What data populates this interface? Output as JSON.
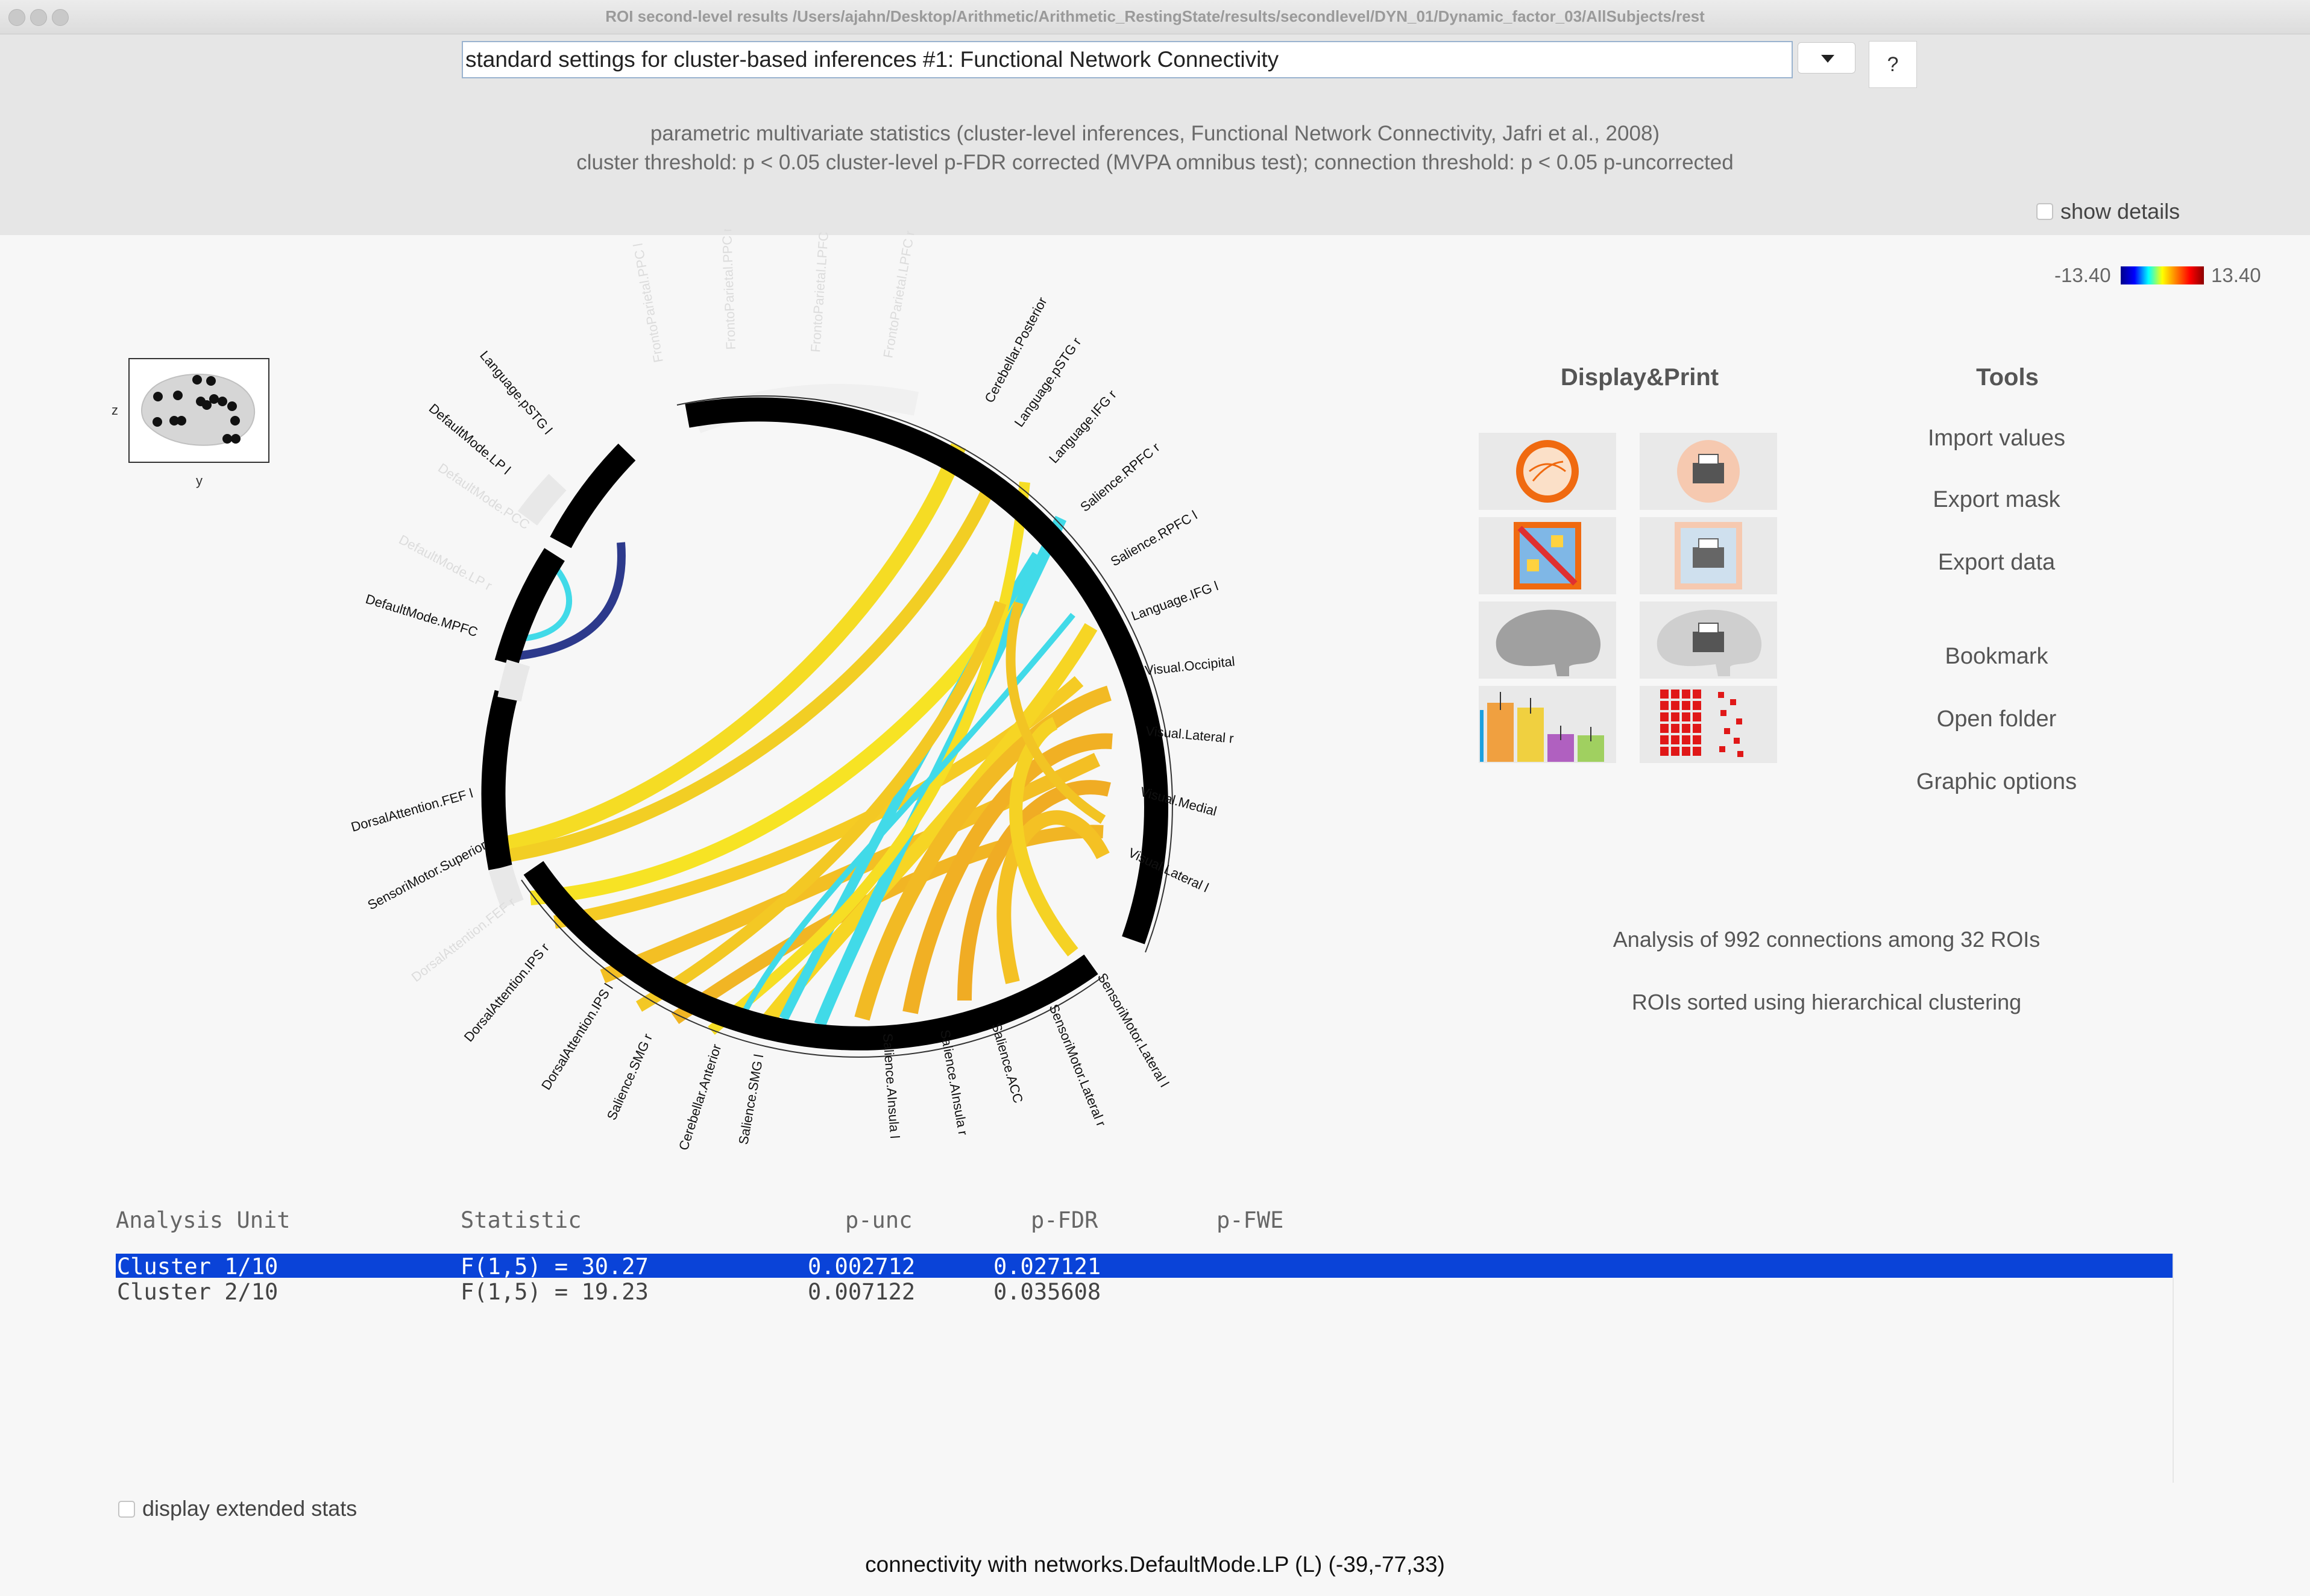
{
  "window": {
    "title": "ROI second-level results /Users/ajahn/Desktop/Arithmetic/Arithmetic_RestingState/results/secondlevel/DYN_01/Dynamic_factor_03/AllSubjects/rest"
  },
  "header": {
    "settings_select": "standard settings for cluster-based inferences #1: Functional Network Connectivity",
    "help_label": "?",
    "method_line": "parametric multivariate statistics (cluster-level inferences, Functional Network Connectivity, Jafri et al., 2008)",
    "threshold_line": "cluster threshold: p <  0.05 cluster-level p-FDR corrected (MVPA omnibus test); connection threshold: p <  0.05 p-uncorrected",
    "show_details_label": "show details",
    "show_details_checked": false
  },
  "colorbar": {
    "min_label": "-13.40",
    "max_label": "13.40"
  },
  "brain_thumb": {
    "z_label": "z",
    "y_label": "y"
  },
  "ring": {
    "labels_right": [
      "Cerebellar.Posterior",
      "Language.pSTG r",
      "Language.IFG r",
      "Salience.RPFC r",
      "Salience.RPFC l",
      "Language.IFG l",
      "Visual.Occipital",
      "Visual.Lateral r",
      "Visual.Medial",
      "Visual.Lateral l"
    ],
    "labels_bottom": [
      "SensoriMotor.Lateral l",
      "SensoriMotor.Lateral r",
      "Salience.ACC",
      "Salience.AInsula r",
      "Salience.AInsula l",
      "Salience.SMG l",
      "Cerebellar.Anterior",
      "Salience.SMG r",
      "DorsalAttention.IPS l",
      "DorsalAttention.IPS r"
    ],
    "labels_left": [
      "SensoriMotor.Superior",
      "DorsalAttention.FEF l",
      "DefaultMode.MPFC",
      "DefaultMode.LP l",
      "Language.pSTG l"
    ],
    "labels_faded": [
      "DorsalAttention.FEF r",
      "DefaultMode.LP r",
      "DefaultMode.PCC",
      "FrontoParietal.PPC l",
      "FrontoParietal.PPC r",
      "FrontoParietal.LPFC l",
      "FrontoParietal.LPFC r"
    ]
  },
  "display_print": {
    "title": "Display&Print",
    "tiles": [
      "ring-view-icon",
      "ring-print-icon",
      "matrix-view-icon",
      "matrix-print-icon",
      "glass-brain-icon",
      "glass-brain-print-icon",
      "bar-plot-icon",
      "values-table-icon"
    ]
  },
  "tools": {
    "title": "Tools",
    "items": [
      "Import values",
      "Export mask",
      "Export data",
      "Bookmark",
      "Open folder",
      "Graphic options"
    ]
  },
  "info": {
    "connections_text": "Analysis of 992 connections among 32 ROIs",
    "sorting_text": "ROIs sorted using hierarchical clustering"
  },
  "stats": {
    "headers": [
      "Analysis Unit",
      "Statistic",
      "p-unc",
      "p-FDR",
      "p-FWE"
    ],
    "rows": [
      {
        "unit": "Cluster 1/10",
        "statistic": "F(1,5) = 30.27",
        "punc": "0.002712",
        "pfdr": "0.027121",
        "pfwe": ""
      },
      {
        "unit": "Cluster 2/10",
        "statistic": "F(1,5) = 19.23",
        "punc": "0.007122",
        "pfdr": "0.035608",
        "pfwe": ""
      }
    ],
    "selected_index": 0
  },
  "extended_stats_label": "display extended stats",
  "extended_stats_checked": false,
  "footer": {
    "status": "connectivity with networks.DefaultMode.LP (L) (-39,-77,33)"
  },
  "colors": {
    "selection": "#0a43d8",
    "cyan_link": "#22d6e6",
    "navy_link": "#0a1a7a",
    "yellow_link": "#f5d800",
    "orange_link": "#f2a000"
  }
}
